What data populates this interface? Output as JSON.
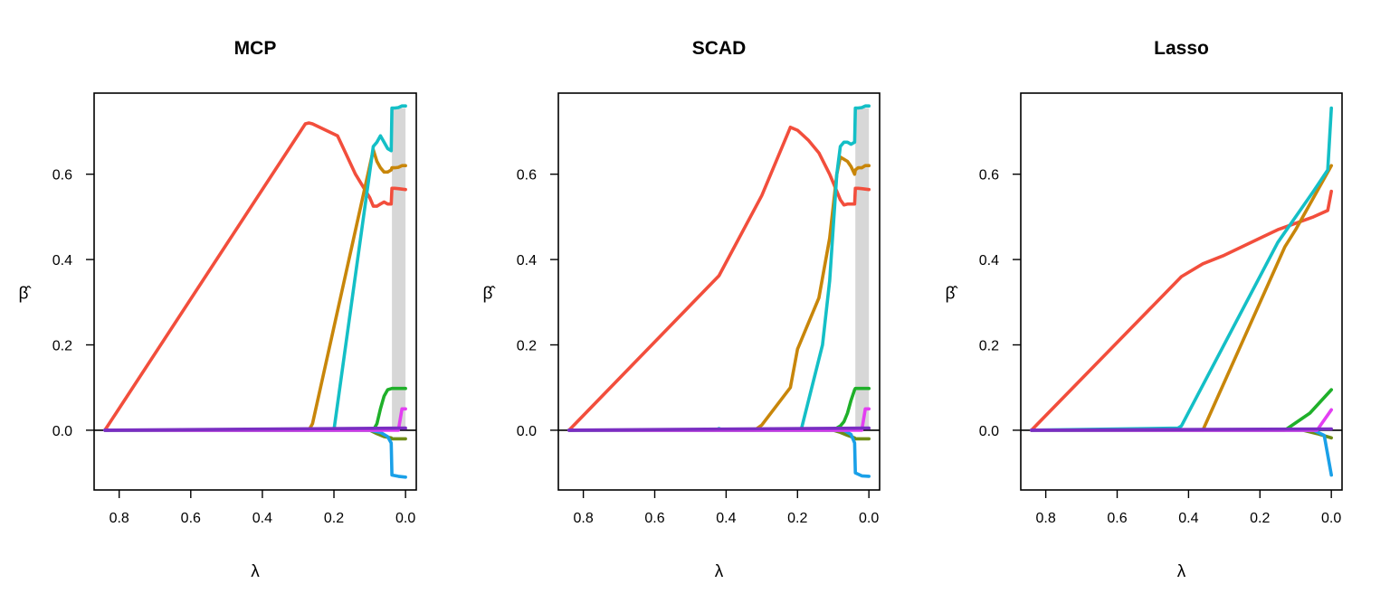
{
  "colors": {
    "red": "#f24e3c",
    "orange": "#c8860a",
    "cyan": "#14bfc6",
    "green": "#1fb02a",
    "olive": "#6e8c16",
    "blue": "#1aa0e8",
    "magenta": "#e33ef2",
    "purple": "#7a2ec2",
    "band": "#d7d7d7",
    "axis": "#000000"
  },
  "chart_data": [
    {
      "type": "line",
      "title": "MCP",
      "xlabel": "λ",
      "ylabel": "β̂",
      "xlim": [
        0.87,
        -0.03
      ],
      "ylim": [
        -0.14,
        0.79
      ],
      "xticks": [
        "0.8",
        "0.6",
        "0.4",
        "0.2",
        "0.0"
      ],
      "xtick_values": [
        0.8,
        0.6,
        0.4,
        0.2,
        0.0
      ],
      "yticks": [
        "0.0",
        "0.2",
        "0.4",
        "0.6"
      ],
      "ytick_values": [
        0.0,
        0.2,
        0.4,
        0.6
      ],
      "shaded_band": [
        0.038,
        0.0
      ],
      "zero_line": true,
      "series": [
        {
          "color": "red",
          "x": [
            0.84,
            0.28,
            0.27,
            0.26,
            0.19,
            0.14,
            0.1,
            0.09,
            0.08,
            0.07,
            0.06,
            0.05,
            0.04,
            0.038,
            0.03,
            0.02,
            0.01,
            0.0
          ],
          "y": [
            0.0,
            0.718,
            0.72,
            0.718,
            0.69,
            0.6,
            0.545,
            0.525,
            0.525,
            0.53,
            0.535,
            0.53,
            0.53,
            0.567,
            0.567,
            0.566,
            0.565,
            0.564
          ]
        },
        {
          "color": "orange",
          "x": [
            0.84,
            0.27,
            0.26,
            0.09,
            0.08,
            0.07,
            0.06,
            0.05,
            0.04,
            0.038,
            0.03,
            0.02,
            0.01,
            0.0
          ],
          "y": [
            0.0,
            0.0,
            0.015,
            0.657,
            0.63,
            0.615,
            0.605,
            0.605,
            0.61,
            0.615,
            0.615,
            0.616,
            0.62,
            0.62
          ]
        },
        {
          "color": "cyan",
          "x": [
            0.84,
            0.2,
            0.09,
            0.08,
            0.07,
            0.06,
            0.05,
            0.04,
            0.038,
            0.03,
            0.02,
            0.01,
            0.0
          ],
          "y": [
            0.0,
            0.0,
            0.665,
            0.675,
            0.69,
            0.675,
            0.66,
            0.655,
            0.755,
            0.755,
            0.756,
            0.76,
            0.76
          ]
        },
        {
          "color": "green",
          "x": [
            0.84,
            0.09,
            0.08,
            0.07,
            0.06,
            0.05,
            0.038,
            0.0
          ],
          "y": [
            0.0,
            0.0,
            0.015,
            0.05,
            0.08,
            0.095,
            0.098,
            0.098
          ]
        },
        {
          "color": "olive",
          "x": [
            0.84,
            0.1,
            0.08,
            0.06,
            0.04,
            0.038,
            0.0
          ],
          "y": [
            0.0,
            0.0,
            -0.008,
            -0.015,
            -0.018,
            -0.02,
            -0.02
          ]
        },
        {
          "color": "blue",
          "x": [
            0.84,
            0.1,
            0.07,
            0.05,
            0.04,
            0.038,
            0.02,
            0.0
          ],
          "y": [
            0.0,
            0.0,
            -0.005,
            -0.015,
            -0.03,
            -0.105,
            -0.108,
            -0.11
          ]
        },
        {
          "color": "magenta",
          "x": [
            0.84,
            0.02,
            0.01,
            0.0
          ],
          "y": [
            0.0,
            0.0,
            0.05,
            0.05
          ]
        },
        {
          "color": "purple",
          "x": [
            0.84,
            0.0
          ],
          "y": [
            0.0,
            0.005
          ]
        }
      ]
    },
    {
      "type": "line",
      "title": "SCAD",
      "xlabel": "λ",
      "ylabel": "β̂",
      "xlim": [
        0.87,
        -0.03
      ],
      "ylim": [
        -0.14,
        0.79
      ],
      "xticks": [
        "0.8",
        "0.6",
        "0.4",
        "0.2",
        "0.0"
      ],
      "xtick_values": [
        0.8,
        0.6,
        0.4,
        0.2,
        0.0
      ],
      "yticks": [
        "0.0",
        "0.2",
        "0.4",
        "0.6"
      ],
      "ytick_values": [
        0.0,
        0.2,
        0.4,
        0.6
      ],
      "shaded_band": [
        0.038,
        0.0
      ],
      "zero_line": true,
      "series": [
        {
          "color": "red",
          "x": [
            0.84,
            0.42,
            0.3,
            0.22,
            0.2,
            0.17,
            0.14,
            0.11,
            0.09,
            0.08,
            0.07,
            0.06,
            0.05,
            0.04,
            0.038,
            0.03,
            0.02,
            0.01,
            0.0
          ],
          "y": [
            0.0,
            0.362,
            0.55,
            0.71,
            0.703,
            0.68,
            0.65,
            0.6,
            0.56,
            0.54,
            0.528,
            0.53,
            0.53,
            0.53,
            0.567,
            0.567,
            0.566,
            0.565,
            0.564
          ]
        },
        {
          "color": "orange",
          "x": [
            0.84,
            0.32,
            0.3,
            0.22,
            0.2,
            0.14,
            0.11,
            0.09,
            0.08,
            0.07,
            0.06,
            0.05,
            0.04,
            0.038,
            0.03,
            0.02,
            0.01,
            0.0
          ],
          "y": [
            0.0,
            0.0,
            0.012,
            0.1,
            0.19,
            0.31,
            0.45,
            0.6,
            0.64,
            0.635,
            0.63,
            0.618,
            0.6,
            0.61,
            0.615,
            0.615,
            0.62,
            0.62
          ]
        },
        {
          "color": "cyan",
          "x": [
            0.84,
            0.43,
            0.42,
            0.41,
            0.19,
            0.13,
            0.11,
            0.09,
            0.08,
            0.07,
            0.06,
            0.05,
            0.04,
            0.038,
            0.03,
            0.02,
            0.01,
            0.0
          ],
          "y": [
            0.0,
            0.0,
            0.004,
            0.0,
            0.0,
            0.2,
            0.35,
            0.6,
            0.665,
            0.675,
            0.675,
            0.67,
            0.675,
            0.755,
            0.755,
            0.756,
            0.76,
            0.76
          ]
        },
        {
          "color": "green",
          "x": [
            0.84,
            0.1,
            0.08,
            0.07,
            0.06,
            0.05,
            0.04,
            0.038,
            0.0
          ],
          "y": [
            0.0,
            0.0,
            0.01,
            0.02,
            0.04,
            0.07,
            0.095,
            0.098,
            0.098
          ]
        },
        {
          "color": "olive",
          "x": [
            0.84,
            0.1,
            0.08,
            0.06,
            0.04,
            0.038,
            0.0
          ],
          "y": [
            0.0,
            0.0,
            -0.005,
            -0.012,
            -0.018,
            -0.02,
            -0.02
          ]
        },
        {
          "color": "blue",
          "x": [
            0.84,
            0.07,
            0.05,
            0.04,
            0.038,
            0.02,
            0.0
          ],
          "y": [
            0.0,
            0.0,
            -0.01,
            -0.03,
            -0.1,
            -0.107,
            -0.108
          ]
        },
        {
          "color": "magenta",
          "x": [
            0.84,
            0.02,
            0.01,
            0.0
          ],
          "y": [
            0.0,
            0.0,
            0.05,
            0.05
          ]
        },
        {
          "color": "purple",
          "x": [
            0.84,
            0.0
          ],
          "y": [
            0.0,
            0.005
          ]
        }
      ]
    },
    {
      "type": "line",
      "title": "Lasso",
      "xlabel": "λ",
      "ylabel": "β̂",
      "xlim": [
        0.87,
        -0.03
      ],
      "ylim": [
        -0.14,
        0.79
      ],
      "xticks": [
        "0.8",
        "0.6",
        "0.4",
        "0.2",
        "0.0"
      ],
      "xtick_values": [
        0.8,
        0.6,
        0.4,
        0.2,
        0.0
      ],
      "yticks": [
        "0.0",
        "0.2",
        "0.4",
        "0.6"
      ],
      "ytick_values": [
        0.0,
        0.2,
        0.4,
        0.6
      ],
      "zero_line": true,
      "series": [
        {
          "color": "red",
          "x": [
            0.84,
            0.42,
            0.36,
            0.3,
            0.15,
            0.05,
            0.01,
            0.0
          ],
          "y": [
            0.0,
            0.36,
            0.39,
            0.41,
            0.47,
            0.5,
            0.515,
            0.56
          ]
        },
        {
          "color": "orange",
          "x": [
            0.84,
            0.36,
            0.13,
            0.1,
            0.0
          ],
          "y": [
            0.0,
            0.0,
            0.43,
            0.47,
            0.62
          ]
        },
        {
          "color": "cyan",
          "x": [
            0.84,
            0.43,
            0.42,
            0.15,
            0.05,
            0.01,
            0.0
          ],
          "y": [
            0.0,
            0.005,
            0.01,
            0.44,
            0.56,
            0.61,
            0.755
          ]
        },
        {
          "color": "green",
          "x": [
            0.84,
            0.13,
            0.06,
            0.0
          ],
          "y": [
            0.0,
            0.0,
            0.04,
            0.095
          ]
        },
        {
          "color": "olive",
          "x": [
            0.84,
            0.08,
            0.04,
            0.0
          ],
          "y": [
            0.0,
            0.0,
            -0.008,
            -0.018
          ]
        },
        {
          "color": "blue",
          "x": [
            0.84,
            0.05,
            0.02,
            0.0
          ],
          "y": [
            0.0,
            0.0,
            -0.012,
            -0.105
          ]
        },
        {
          "color": "magenta",
          "x": [
            0.84,
            0.04,
            0.0
          ],
          "y": [
            0.0,
            0.0,
            0.048
          ]
        },
        {
          "color": "purple",
          "x": [
            0.84,
            0.0
          ],
          "y": [
            0.0,
            0.003
          ]
        }
      ]
    }
  ]
}
